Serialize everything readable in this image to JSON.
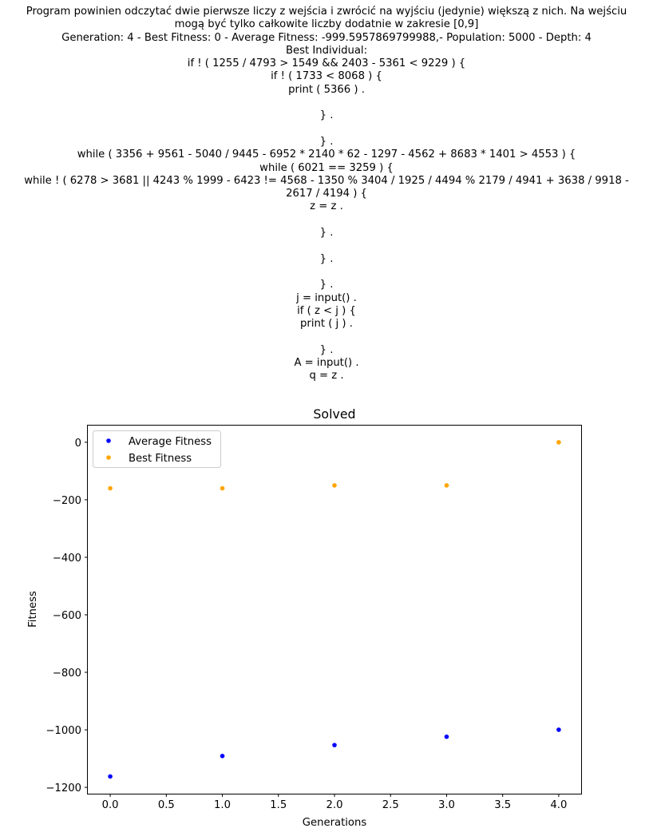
{
  "header_lines": [
    "Program powinien odczytać dwie pierwsze liczy z wejścia i zwrócić na wyjściu (jedynie) większą z nich. Na wejściu",
    "mogą być tylko całkowite liczby dodatnie w zakresie [0,9]",
    "Generation: 4 - Best Fitness: 0 - Average Fitness: -999.5957869799988,- Population: 5000 - Depth: 4",
    "Best Individual:",
    "if ! ( 1255 / 4793 > 1549 && 2403 - 5361 < 9229 ) {",
    "if ! ( 1733 < 8068 ) {",
    "print ( 5366 ) .",
    "",
    "} .",
    "",
    "} .",
    "while ( 3356 + 9561 - 5040 / 9445 - 6952 * 2140 * 62 - 1297 - 4562 + 8683 * 1401 > 4553 ) {",
    "while ( 6021 == 3259 ) {",
    "while ! ( 6278 > 3681 || 4243 % 1999 - 6423 != 4568 - 1350 % 3404 / 1925 / 4494 % 2179 / 4941 + 3638 / 9918 -",
    "2617 / 4194 ) {",
    "z = z .",
    "",
    "} .",
    "",
    "} .",
    "",
    "} .",
    "j = input() .",
    "if ( z < j ) {",
    "print ( j ) .",
    "",
    "} .",
    "A = input() .",
    "q = z ."
  ],
  "chart_data": {
    "type": "scatter",
    "title": "Solved",
    "xlabel": "Generations",
    "ylabel": "Fitness",
    "xlim": [
      -0.2,
      4.2
    ],
    "ylim": [
      -1222,
      58
    ],
    "xticks": [
      0.0,
      0.5,
      1.0,
      1.5,
      2.0,
      2.5,
      3.0,
      3.5,
      4.0
    ],
    "xtick_labels": [
      "0.0",
      "0.5",
      "1.0",
      "1.5",
      "2.0",
      "2.5",
      "3.0",
      "3.5",
      "4.0"
    ],
    "yticks": [
      0,
      -200,
      -400,
      -600,
      -800,
      -1000,
      -1200
    ],
    "ytick_labels": [
      "0",
      "−200",
      "−400",
      "−600",
      "−800",
      "−1000",
      "−1200"
    ],
    "grid": false,
    "legend_position": "upper-left",
    "series": [
      {
        "name": "Average Fitness",
        "color": "#0000ff",
        "x": [
          0,
          1,
          2,
          3,
          4
        ],
        "y": [
          -1162,
          -1091,
          -1053,
          -1024,
          -999.6
        ]
      },
      {
        "name": "Best Fitness",
        "color": "#ffa500",
        "x": [
          0,
          1,
          2,
          3,
          4
        ],
        "y": [
          -160,
          -160,
          -150,
          -150,
          0
        ]
      }
    ]
  }
}
